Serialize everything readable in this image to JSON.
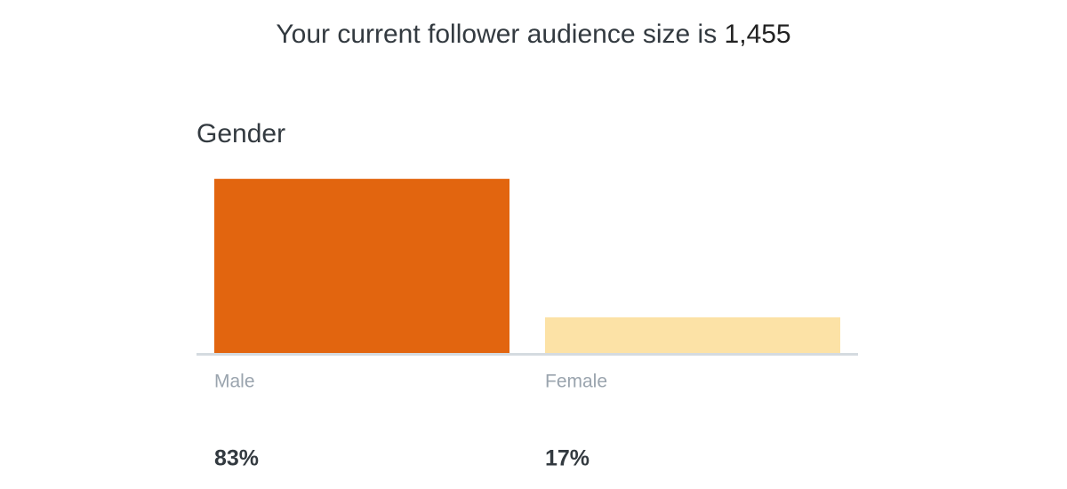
{
  "header": {
    "text": "Your current follower audience size is",
    "value": "1,455"
  },
  "chart_data": {
    "type": "bar",
    "title": "Gender",
    "categories": [
      "Male",
      "Female"
    ],
    "values": [
      83,
      17
    ],
    "value_labels": [
      "83%",
      "17%"
    ],
    "colors": [
      "#e2650f",
      "#fce2a6"
    ]
  }
}
